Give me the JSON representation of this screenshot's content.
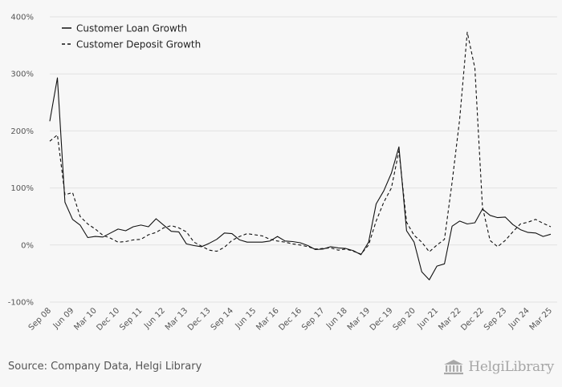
{
  "footer": {
    "source": "Source: Company Data, Helgi Library",
    "logo_text": "HelgiLibrary"
  },
  "icons": {
    "logo": "bank-building-icon"
  },
  "chart_data": {
    "type": "line",
    "title": "",
    "xlabel": "",
    "ylabel": "",
    "ylim": [
      -100,
      400
    ],
    "yticks": [
      -100,
      0,
      100,
      200,
      300,
      400
    ],
    "ytick_labels": [
      "-100%",
      "0%",
      "100%",
      "200%",
      "300%",
      "400%"
    ],
    "xtick_labels": [
      "Sep 08",
      "Jun 09",
      "Mar 10",
      "Dec 10",
      "Sep 11",
      "Jun 12",
      "Mar 13",
      "Dec 13",
      "Sep 14",
      "Jun 15",
      "Mar 16",
      "Dec 16",
      "Sep 17",
      "Jun 18",
      "Mar 19",
      "Dec 19",
      "Sep 20",
      "Jun 21",
      "Mar 22",
      "Dec 22",
      "Sep 23",
      "Jun 24",
      "Mar 25"
    ],
    "x_start": "Sep 08",
    "x_step": "quarter",
    "grid": true,
    "legend_position": "top-left",
    "series": [
      {
        "name": "Customer Loan Growth",
        "style": "solid",
        "color": "#111111",
        "values": [
          217,
          293,
          75,
          45,
          35,
          13,
          15,
          14,
          21,
          28,
          25,
          32,
          35,
          32,
          46,
          35,
          24,
          23,
          2,
          -1,
          -3,
          3,
          10,
          21,
          20,
          9,
          5,
          5,
          5,
          7,
          15,
          7,
          6,
          4,
          -1,
          -8,
          -7,
          -3,
          -5,
          -6,
          -10,
          -17,
          5,
          72,
          95,
          126,
          172,
          25,
          5,
          -47,
          -61,
          -37,
          -33,
          33,
          42,
          37,
          39,
          63,
          52,
          48,
          49,
          36,
          27,
          22,
          21,
          15,
          19
        ]
      },
      {
        "name": "Customer Deposit Growth",
        "style": "dashed",
        "color": "#111111",
        "values": [
          182,
          193,
          88,
          92,
          50,
          37,
          28,
          17,
          12,
          5,
          6,
          9,
          10,
          18,
          22,
          30,
          34,
          30,
          23,
          5,
          -2,
          -9,
          -11,
          -4,
          8,
          15,
          20,
          18,
          16,
          10,
          7,
          5,
          2,
          0,
          -3,
          -7,
          -6,
          -5,
          -9,
          -7,
          -11,
          -16,
          0,
          42,
          75,
          100,
          165,
          40,
          17,
          5,
          -12,
          0,
          10,
          110,
          220,
          373,
          310,
          67,
          8,
          -3,
          8,
          23,
          37,
          40,
          45,
          38,
          32
        ]
      }
    ]
  }
}
